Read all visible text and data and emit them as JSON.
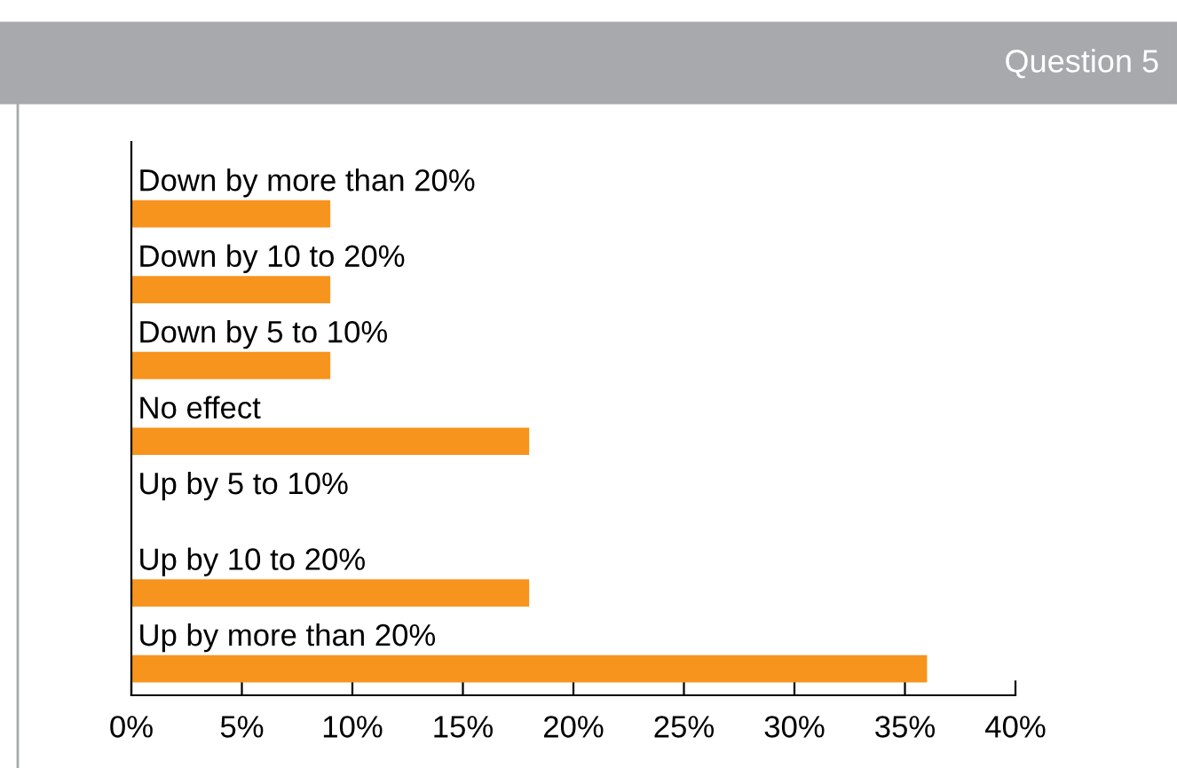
{
  "chart_data": {
    "type": "bar",
    "orientation": "horizontal",
    "title": "Question 5",
    "categories": [
      "Down by more than 20%",
      "Down by 10 to 20%",
      "Down by 5 to 10%",
      "No effect",
      "Up by 5 to 10%",
      "Up by 10 to 20%",
      "Up by more than 20%"
    ],
    "values": [
      9,
      9,
      9,
      18,
      0,
      18,
      36
    ],
    "color": "#f7941d",
    "xlim": [
      0,
      40
    ],
    "xticks": [
      {
        "value": 0,
        "label": "0%"
      },
      {
        "value": 5,
        "label": "5%"
      },
      {
        "value": 10,
        "label": "10%"
      },
      {
        "value": 15,
        "label": "15%"
      },
      {
        "value": 20,
        "label": "20%"
      },
      {
        "value": 25,
        "label": "25%"
      },
      {
        "value": 30,
        "label": "30%"
      },
      {
        "value": 35,
        "label": "35%"
      },
      {
        "value": 40,
        "label": "40%"
      }
    ],
    "grid": false,
    "legend": false
  }
}
